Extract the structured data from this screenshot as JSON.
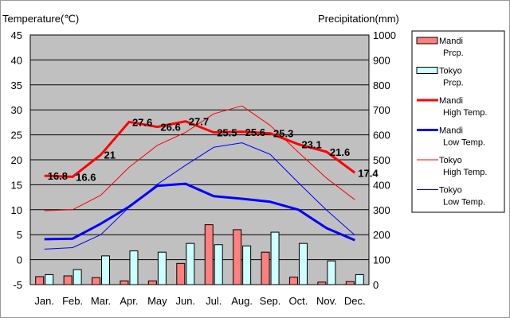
{
  "chart_data": {
    "type": "bar+line",
    "categories": [
      "Jan.",
      "Feb.",
      "Mar.",
      "Apr.",
      "May",
      "Jun.",
      "Jul.",
      "Aug.",
      "Sep.",
      "Oct.",
      "Nov.",
      "Dec."
    ],
    "left_axis": {
      "title": "Temperature(℃)",
      "ylim": [
        -5,
        45
      ],
      "ticks": [
        -5,
        0,
        5,
        10,
        15,
        20,
        25,
        30,
        35,
        40,
        45
      ]
    },
    "right_axis": {
      "title": "Precipitation(mm)",
      "ylim": [
        0,
        1000
      ],
      "ticks": [
        0,
        100,
        200,
        300,
        400,
        500,
        600,
        700,
        800,
        900,
        1000
      ]
    },
    "grid": "horizontal",
    "legend_position": "right",
    "series": [
      {
        "name": "Mandi Prcp.",
        "legend_lines": [
          "Mandi",
          "Prcp."
        ],
        "kind": "bar",
        "axis": "right",
        "color": "#ff7f7f",
        "values": [
          32,
          35,
          28,
          15,
          15,
          85,
          240,
          220,
          130,
          30,
          10,
          12
        ]
      },
      {
        "name": "Tokyo Prcp.",
        "legend_lines": [
          "Tokyo",
          "Prcp."
        ],
        "kind": "bar",
        "axis": "right",
        "color": "#ccffff",
        "values": [
          40,
          60,
          115,
          135,
          130,
          165,
          160,
          155,
          210,
          165,
          95,
          40
        ]
      },
      {
        "name": "Mandi High Temp.",
        "legend_lines": [
          "Mandi",
          "High Temp."
        ],
        "kind": "line",
        "axis": "left",
        "color": "#ff0000",
        "width": 3,
        "values": [
          16.8,
          16.6,
          21,
          27.6,
          26.6,
          27.7,
          25.5,
          25.6,
          25.3,
          23.1,
          21.6,
          17.4
        ],
        "labels": [
          "16.8",
          "16.6",
          "21",
          "27.6",
          "26.6",
          "27.7",
          "25.5",
          "25.6",
          "25.3",
          "23.1",
          "21.6",
          "17.4"
        ]
      },
      {
        "name": "Mandi Low Temp.",
        "legend_lines": [
          "Mandi",
          "Low Temp."
        ],
        "kind": "line",
        "axis": "left",
        "color": "#0000ff",
        "width": 3,
        "values": [
          4.1,
          4.2,
          7.2,
          10.6,
          14.8,
          15.2,
          12.7,
          12.2,
          11.6,
          10.0,
          6.3,
          3.9
        ]
      },
      {
        "name": "Tokyo High Temp.",
        "legend_lines": [
          "Tokyo",
          "High Temp."
        ],
        "kind": "line",
        "axis": "left",
        "color": "#ff0000",
        "width": 1,
        "values": [
          9.8,
          10.0,
          12.9,
          18.5,
          22.9,
          25.5,
          29.2,
          30.8,
          26.9,
          21.5,
          16.3,
          12.0
        ]
      },
      {
        "name": "Tokyo Low Temp.",
        "legend_lines": [
          "Tokyo",
          "Low Temp."
        ],
        "kind": "line",
        "axis": "left",
        "color": "#0000ff",
        "width": 1,
        "values": [
          2.1,
          2.4,
          5.0,
          10.5,
          15.1,
          18.9,
          22.5,
          23.4,
          21.1,
          15.4,
          9.9,
          4.9
        ]
      }
    ]
  }
}
